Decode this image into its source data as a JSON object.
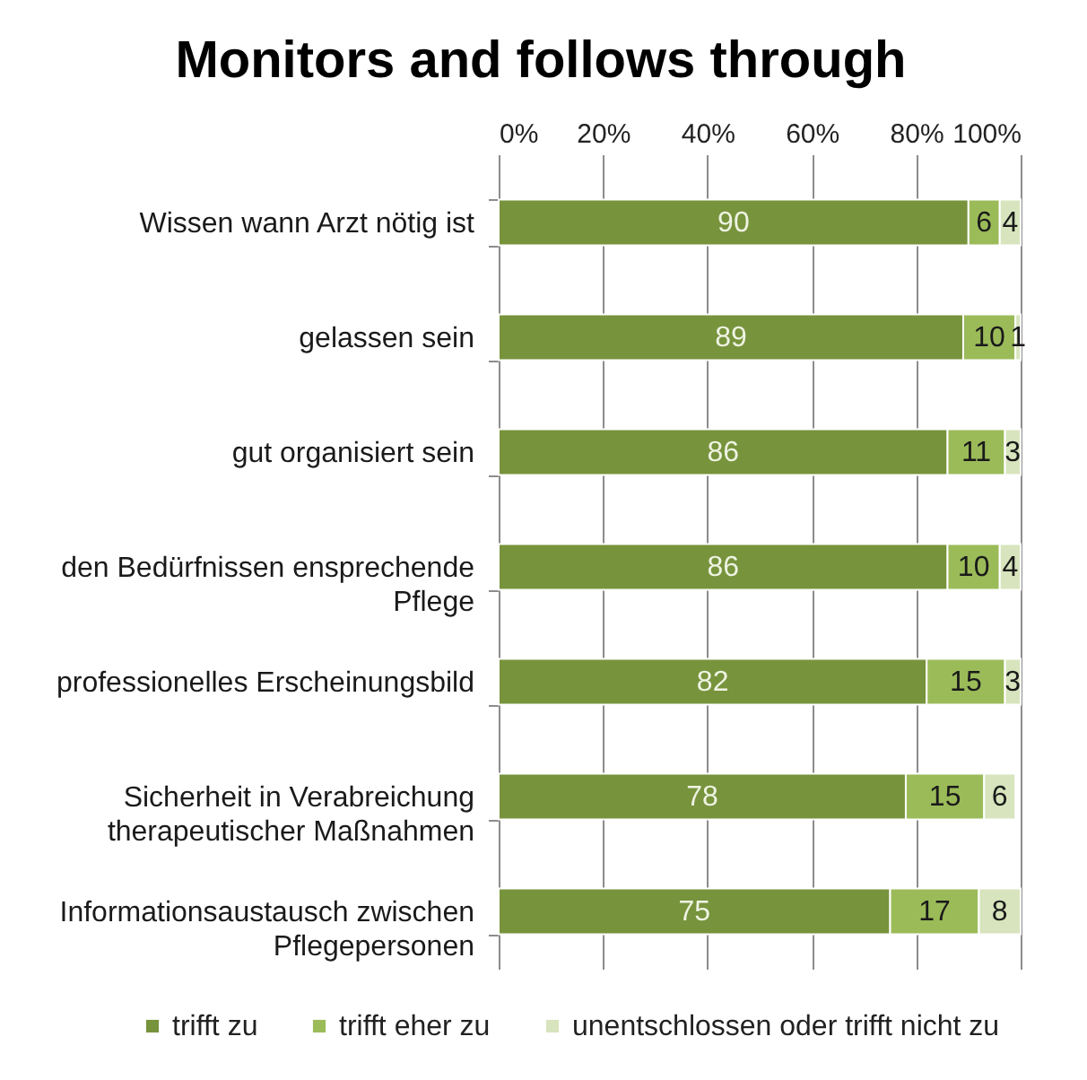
{
  "chart_data": {
    "type": "bar",
    "orientation": "horizontal",
    "stacked": true,
    "title": "Monitors and follows through",
    "categories": [
      "Wissen wann Arzt nötig ist",
      "gelassen sein",
      "gut organisiert sein",
      "den Bedürfnissen ensprechende Pflege",
      "professionelles Erscheinungsbild",
      "Sicherheit in Verabreichung therapeutischer Maßnahmen",
      "Informationsaustausch zwischen Pflegepersonen"
    ],
    "series": [
      {
        "name": "trifft zu",
        "color": "#77933c",
        "values": [
          90,
          89,
          86,
          86,
          82,
          78,
          75
        ]
      },
      {
        "name": "trifft eher zu",
        "color": "#9bbb59",
        "values": [
          6,
          10,
          11,
          10,
          15,
          15,
          17
        ]
      },
      {
        "name": "unentschlossen oder trifft nicht zu",
        "color": "#d7e4bd",
        "values": [
          4,
          1,
          3,
          4,
          3,
          6,
          8
        ]
      }
    ],
    "xlim": [
      0,
      100
    ],
    "xticks": [
      {
        "value": 0,
        "label": "0%"
      },
      {
        "value": 20,
        "label": "20%"
      },
      {
        "value": 40,
        "label": "40%"
      },
      {
        "value": 60,
        "label": "60%"
      },
      {
        "value": 80,
        "label": "80%"
      },
      {
        "value": 100,
        "label": "100%"
      }
    ],
    "grid": "x",
    "legend": "bottom",
    "data_labels": true
  }
}
